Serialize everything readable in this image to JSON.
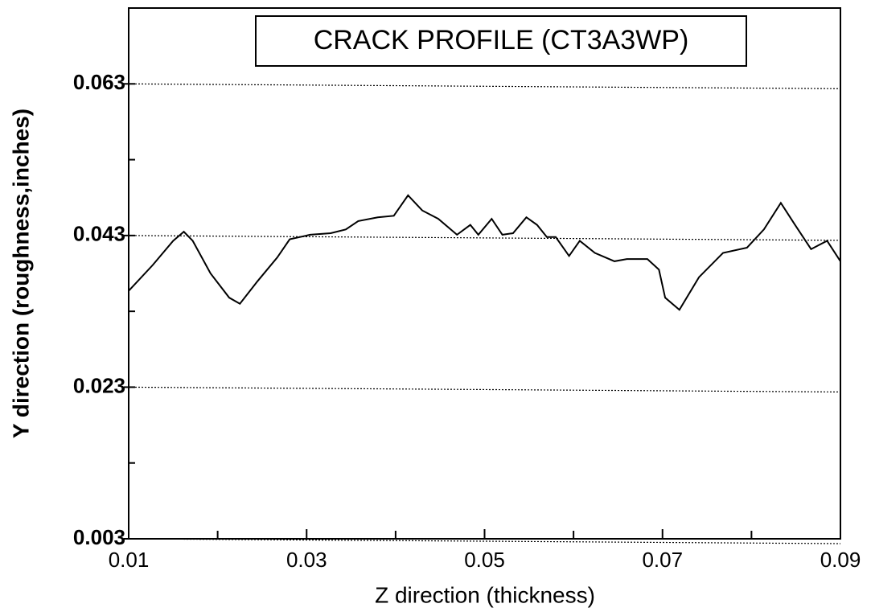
{
  "chart_data": {
    "type": "line",
    "title": "CRACK PROFILE (CT3A3WP)",
    "x_label": "Z direction (thickness)",
    "y_label": "Y direction (roughness,inches)",
    "xlim": [
      0.01,
      0.09
    ],
    "ylim": [
      0.003,
      0.073
    ],
    "xticks": [
      0.01,
      0.03,
      0.05,
      0.07,
      0.09
    ],
    "x_minor_ticks": [
      0.02,
      0.04,
      0.06,
      0.08
    ],
    "yticks": [
      0.003,
      0.023,
      0.043,
      0.063
    ],
    "y_minor_ticks": [
      0.013,
      0.033,
      0.053
    ],
    "grid": true,
    "series": [
      {
        "color": "#000000",
        "x": [
          0.01,
          0.0127,
          0.015,
          0.0162,
          0.0172,
          0.0192,
          0.0213,
          0.0225,
          0.0245,
          0.0267,
          0.0281,
          0.0304,
          0.0327,
          0.0344,
          0.0358,
          0.038,
          0.0398,
          0.0414,
          0.043,
          0.0448,
          0.0469,
          0.0484,
          0.0493,
          0.0508,
          0.052,
          0.0532,
          0.0547,
          0.0559,
          0.057,
          0.058,
          0.0595,
          0.0607,
          0.0624,
          0.0646,
          0.066,
          0.0683,
          0.0696,
          0.0703,
          0.0719,
          0.0741,
          0.0768,
          0.0795,
          0.0814,
          0.0833,
          0.0849,
          0.0867,
          0.0885,
          0.09
        ],
        "values": [
          0.0357,
          0.0391,
          0.0423,
          0.0435,
          0.0423,
          0.038,
          0.0348,
          0.034,
          0.037,
          0.0401,
          0.0425,
          0.0431,
          0.0433,
          0.0438,
          0.0449,
          0.0454,
          0.0456,
          0.0483,
          0.0463,
          0.0452,
          0.0431,
          0.0444,
          0.0431,
          0.0452,
          0.0431,
          0.0433,
          0.0454,
          0.0444,
          0.0428,
          0.0428,
          0.0403,
          0.0423,
          0.0407,
          0.0396,
          0.0399,
          0.0399,
          0.0385,
          0.0348,
          0.0332,
          0.0375,
          0.0407,
          0.0414,
          0.0438,
          0.0473,
          0.0444,
          0.0412,
          0.0423,
          0.0396
        ]
      }
    ]
  }
}
